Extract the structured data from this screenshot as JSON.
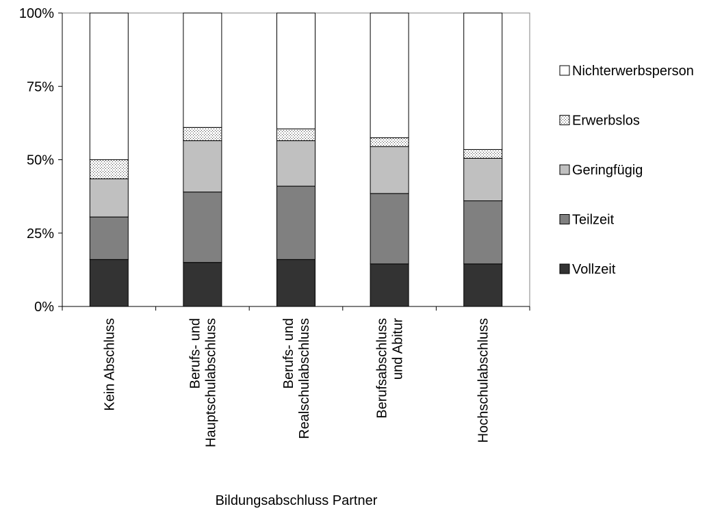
{
  "chart_data": {
    "type": "bar",
    "stacked": "percent",
    "categories": [
      [
        "Kein Abschluss"
      ],
      [
        "Berufs- und",
        "Hauptschulabschluss"
      ],
      [
        "Berufs- und",
        "Realschulabschluss"
      ],
      [
        "Berufsabschluss",
        "und Abitur"
      ],
      [
        "Hochschulabschluss"
      ]
    ],
    "series": [
      {
        "name": "Vollzeit",
        "values": [
          16,
          15,
          16,
          14.5,
          14.5
        ],
        "color": "#333333",
        "pattern": "solid"
      },
      {
        "name": "Teilzeit",
        "values": [
          14.5,
          24,
          25,
          24,
          21.5
        ],
        "color": "#808080",
        "pattern": "solid"
      },
      {
        "name": "Geringfügig",
        "values": [
          13,
          17.5,
          15.5,
          16,
          14.5
        ],
        "color": "#c0c0c0",
        "pattern": "solid"
      },
      {
        "name": "Erwerbslos",
        "values": [
          6.5,
          4.5,
          4,
          3,
          3
        ],
        "color": "#ffffff",
        "pattern": "dots"
      },
      {
        "name": "Nichterwerbsperson",
        "values": [
          50,
          39,
          39.5,
          42.5,
          46.5
        ],
        "color": "#ffffff",
        "pattern": "solid"
      }
    ],
    "yticks": [
      "0%",
      "25%",
      "50%",
      "75%",
      "100%"
    ],
    "ylim": [
      0,
      100
    ],
    "xlabel": "Bildungsabschluss Partner",
    "ylabel": "",
    "title": "",
    "grid": false,
    "legend": {
      "position": "right",
      "entries": [
        "Nichterwerbsperson",
        "Erwerbslos",
        "Geringfügig",
        "Teilzeit",
        "Vollzeit"
      ]
    }
  }
}
